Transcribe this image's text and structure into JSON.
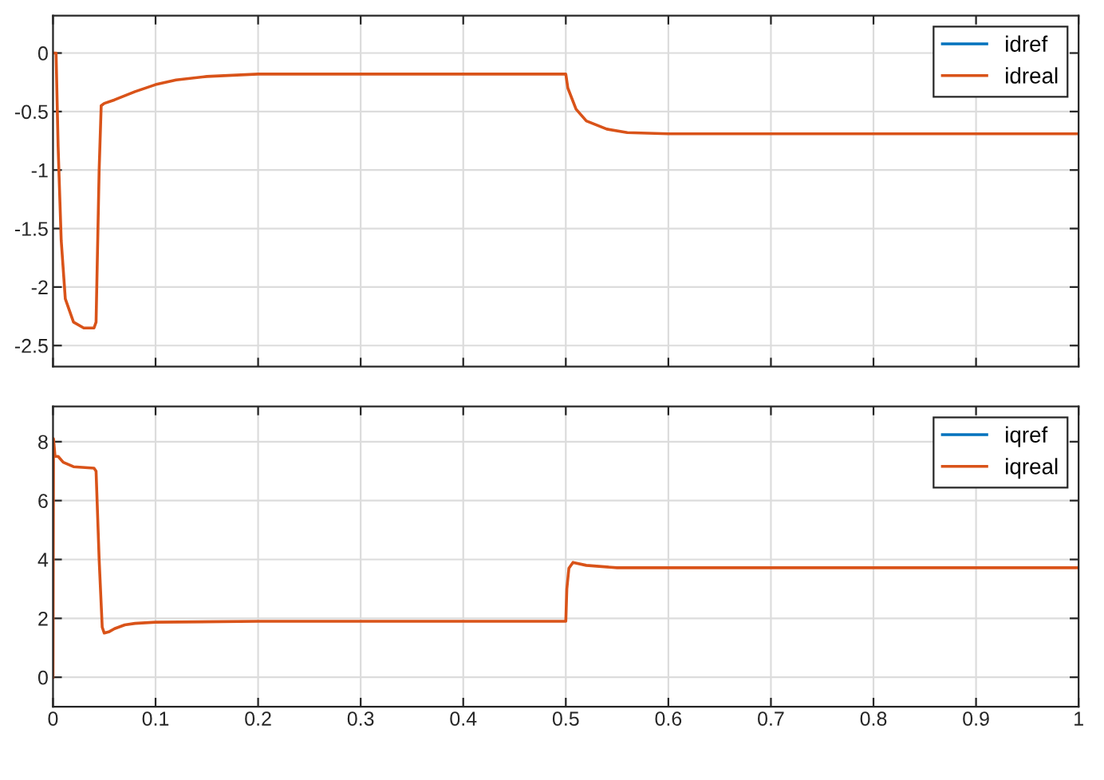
{
  "chart_data": [
    {
      "type": "line",
      "xlim": [
        0,
        1
      ],
      "ylim": [
        -2.68,
        0.32
      ],
      "xticks": [
        0,
        0.1,
        0.2,
        0.3,
        0.4,
        0.5,
        0.6,
        0.7,
        0.8,
        0.9,
        1
      ],
      "yticks": [
        -2.5,
        -2,
        -1.5,
        -1,
        -0.5,
        0
      ],
      "tick_labels": "y",
      "grid": true,
      "legend": "top right",
      "marker": "none",
      "line_style": "solid",
      "x": [
        0,
        0.003,
        0.005,
        0.008,
        0.012,
        0.02,
        0.03,
        0.04,
        0.042,
        0.045,
        0.047,
        0.05,
        0.06,
        0.08,
        0.1,
        0.12,
        0.15,
        0.2,
        0.3,
        0.4,
        0.5,
        0.502,
        0.51,
        0.52,
        0.54,
        0.56,
        0.6,
        0.7,
        0.8,
        0.9,
        1
      ],
      "series": [
        {
          "name": "idref",
          "color": "#0072bd",
          "values": [
            null,
            null,
            null,
            null,
            null,
            null,
            null,
            null,
            null,
            null,
            null,
            null,
            null,
            null,
            null,
            null,
            null,
            null,
            null,
            null,
            null,
            null,
            null,
            null,
            null,
            null,
            null,
            null,
            null,
            null,
            null
          ]
        },
        {
          "name": "idreal",
          "color": "#d95319",
          "values": [
            0,
            0,
            -0.8,
            -1.6,
            -2.1,
            -2.3,
            -2.35,
            -2.35,
            -2.3,
            -1.0,
            -0.45,
            -0.43,
            -0.4,
            -0.33,
            -0.27,
            -0.23,
            -0.2,
            -0.18,
            -0.18,
            -0.18,
            -0.18,
            -0.3,
            -0.48,
            -0.58,
            -0.65,
            -0.68,
            -0.69,
            -0.69,
            -0.69,
            -0.69,
            -0.69
          ]
        }
      ]
    },
    {
      "type": "line",
      "xlim": [
        0,
        1
      ],
      "ylim": [
        -1,
        9.2
      ],
      "xticks": [
        0,
        0.1,
        0.2,
        0.3,
        0.4,
        0.5,
        0.6,
        0.7,
        0.8,
        0.9,
        1
      ],
      "yticks": [
        0,
        2,
        4,
        6,
        8
      ],
      "grid": true,
      "legend": "top right",
      "marker": "none",
      "line_style": "solid",
      "x": [
        0,
        0.0005,
        0.002,
        0.005,
        0.01,
        0.02,
        0.04,
        0.042,
        0.045,
        0.048,
        0.05,
        0.055,
        0.06,
        0.07,
        0.08,
        0.1,
        0.2,
        0.5,
        0.501,
        0.503,
        0.507,
        0.52,
        0.55,
        0.6,
        1
      ],
      "series": [
        {
          "name": "iqref",
          "color": "#0072bd",
          "values": [
            null,
            null,
            null,
            null,
            null,
            null,
            null,
            null,
            null,
            null,
            null,
            null,
            null,
            null,
            null,
            null,
            null,
            null,
            null,
            null,
            null,
            null,
            null,
            null,
            null
          ]
        },
        {
          "name": "iqreal",
          "color": "#d95319",
          "values": [
            0,
            8.1,
            7.5,
            7.5,
            7.3,
            7.15,
            7.1,
            7.0,
            4,
            1.7,
            1.5,
            1.55,
            1.65,
            1.78,
            1.83,
            1.87,
            1.9,
            1.9,
            3,
            3.7,
            3.9,
            3.8,
            3.72,
            3.72,
            3.72
          ]
        }
      ]
    }
  ]
}
